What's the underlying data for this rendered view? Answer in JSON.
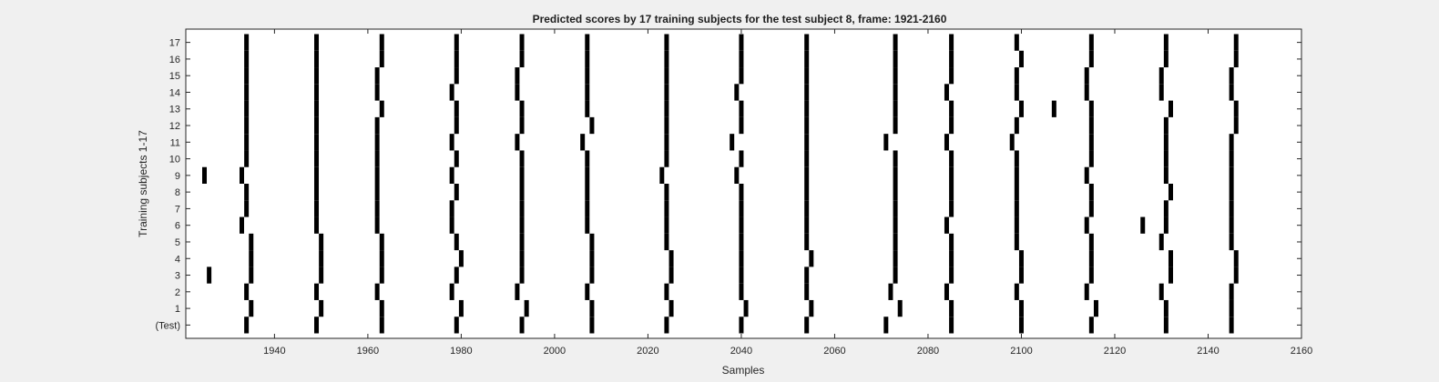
{
  "chart_data": {
    "type": "scatter",
    "title": "Predicted scores by 17 training subjects for the test subject 8, frame: 1921-2160",
    "xlabel": "Samples",
    "ylabel": "Training subjects 1-17",
    "xlim": [
      1921,
      2160
    ],
    "x_ticks": [
      1940,
      1960,
      1980,
      2000,
      2020,
      2040,
      2060,
      2080,
      2100,
      2120,
      2140,
      2160
    ],
    "y_tick_labels": [
      "(Test)",
      "1",
      "2",
      "3",
      "4",
      "5",
      "6",
      "7",
      "8",
      "9",
      "10",
      "11",
      "12",
      "13",
      "14",
      "15",
      "16",
      "17"
    ],
    "grid": false,
    "marker": "vertical-bar",
    "series": [
      {
        "row": "(Test)",
        "x": [
          1934,
          1949,
          1963,
          1979,
          1993,
          2008,
          2024,
          2040,
          2054,
          2071,
          2085,
          2100,
          2115,
          2131,
          2145
        ]
      },
      {
        "row": "1",
        "x": [
          1935,
          1950,
          1963,
          1980,
          1994,
          2008,
          2025,
          2041,
          2055,
          2074,
          2085,
          2100,
          2116,
          2131,
          2145
        ]
      },
      {
        "row": "2",
        "x": [
          1934,
          1949,
          1962,
          1978,
          1992,
          2007,
          2024,
          2040,
          2054,
          2072,
          2084,
          2099,
          2114,
          2130,
          2145
        ]
      },
      {
        "row": "3",
        "x": [
          1926,
          1935,
          1950,
          1963,
          1979,
          1993,
          2008,
          2025,
          2040,
          2054,
          2073,
          2085,
          2100,
          2115,
          2132,
          2146
        ]
      },
      {
        "row": "4",
        "x": [
          1935,
          1950,
          1963,
          1980,
          1993,
          2008,
          2025,
          2040,
          2055,
          2073,
          2085,
          2100,
          2115,
          2132,
          2146
        ]
      },
      {
        "row": "5",
        "x": [
          1935,
          1950,
          1963,
          1979,
          1993,
          2008,
          2024,
          2040,
          2054,
          2073,
          2085,
          2099,
          2115,
          2130,
          2145
        ]
      },
      {
        "row": "6",
        "x": [
          1933,
          1949,
          1962,
          1978,
          1993,
          2007,
          2024,
          2040,
          2054,
          2073,
          2084,
          2099,
          2114,
          2126,
          2131,
          2145
        ]
      },
      {
        "row": "7",
        "x": [
          1934,
          1949,
          1962,
          1978,
          1993,
          2007,
          2024,
          2040,
          2054,
          2073,
          2085,
          2099,
          2115,
          2131,
          2145
        ]
      },
      {
        "row": "8",
        "x": [
          1934,
          1949,
          1962,
          1979,
          1993,
          2007,
          2024,
          2040,
          2054,
          2073,
          2085,
          2099,
          2115,
          2132,
          2145
        ]
      },
      {
        "row": "9",
        "x": [
          1925,
          1933,
          1949,
          1962,
          1978,
          1993,
          2007,
          2023,
          2039,
          2054,
          2073,
          2085,
          2099,
          2114,
          2131,
          2145
        ]
      },
      {
        "row": "10",
        "x": [
          1934,
          1949,
          1962,
          1979,
          1993,
          2007,
          2024,
          2040,
          2054,
          2073,
          2085,
          2099,
          2115,
          2131,
          2145
        ]
      },
      {
        "row": "11",
        "x": [
          1934,
          1949,
          1962,
          1978,
          1992,
          2006,
          2024,
          2038,
          2054,
          2071,
          2084,
          2098,
          2115,
          2131,
          2145
        ]
      },
      {
        "row": "12",
        "x": [
          1934,
          1949,
          1962,
          1979,
          1993,
          2008,
          2024,
          2040,
          2054,
          2073,
          2085,
          2099,
          2115,
          2131,
          2146
        ]
      },
      {
        "row": "13",
        "x": [
          1934,
          1949,
          1963,
          1979,
          1993,
          2007,
          2024,
          2040,
          2054,
          2073,
          2085,
          2100,
          2107,
          2115,
          2132,
          2146
        ]
      },
      {
        "row": "14",
        "x": [
          1934,
          1949,
          1962,
          1978,
          1992,
          2007,
          2024,
          2039,
          2054,
          2073,
          2084,
          2099,
          2114,
          2130,
          2145
        ]
      },
      {
        "row": "15",
        "x": [
          1934,
          1949,
          1962,
          1979,
          1992,
          2007,
          2024,
          2040,
          2054,
          2073,
          2085,
          2099,
          2114,
          2130,
          2145
        ]
      },
      {
        "row": "16",
        "x": [
          1934,
          1949,
          1963,
          1979,
          1993,
          2007,
          2024,
          2040,
          2054,
          2073,
          2085,
          2100,
          2115,
          2131,
          2146
        ]
      },
      {
        "row": "17",
        "x": [
          1934,
          1949,
          1963,
          1979,
          1993,
          2007,
          2024,
          2040,
          2054,
          2073,
          2085,
          2099,
          2115,
          2131,
          2146
        ]
      }
    ],
    "colors": {
      "figure_bg": "#f0f0f0",
      "axes_bg": "#ffffff",
      "mark": "#000000",
      "axis": "#262626"
    }
  }
}
